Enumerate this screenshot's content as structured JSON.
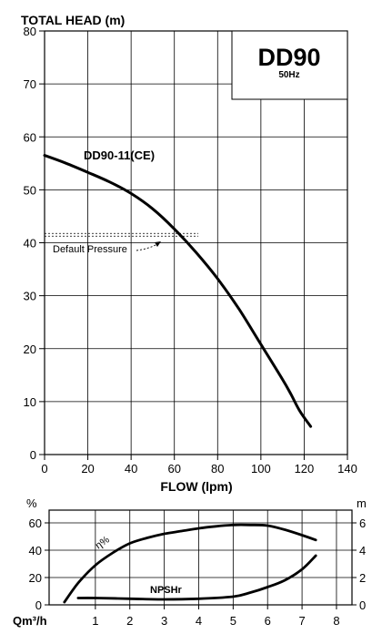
{
  "chart_data": [
    {
      "type": "line",
      "title": "",
      "ylabel": "TOTAL HEAD (m)",
      "xlabel": "FLOW (lpm)",
      "xlim": [
        0,
        140
      ],
      "ylim": [
        0,
        80
      ],
      "x_ticks": [
        "0",
        "20",
        "40",
        "60",
        "80",
        "100",
        "120",
        "140"
      ],
      "y_ticks": [
        "0",
        "10",
        "20",
        "30",
        "40",
        "50",
        "60",
        "70",
        "80"
      ],
      "grid": true,
      "model_box": {
        "model": "DD90",
        "frequency": "50Hz"
      },
      "series": [
        {
          "name": "DD90-11(CE)",
          "x": [
            0,
            10,
            20,
            30,
            40,
            50,
            60,
            70,
            80,
            90,
            100,
            110,
            114,
            118,
            123
          ],
          "y": [
            56.5,
            55,
            53.3,
            51.5,
            49.3,
            46.4,
            42.6,
            38.2,
            33.2,
            27.4,
            20.8,
            14.2,
            11.3,
            8.2,
            5.3
          ]
        }
      ],
      "reference_line": {
        "label": "Default Pressure",
        "y": 41.5
      }
    },
    {
      "type": "line",
      "left_unit": "%",
      "right_unit": "m",
      "bottom_unit": "Qm³/h",
      "xlim": [
        0,
        8
      ],
      "ylim_left": [
        0,
        60
      ],
      "ylim_right": [
        0,
        6
      ],
      "x_ticks": [
        "1",
        "2",
        "3",
        "4",
        "5",
        "6",
        "7",
        "8"
      ],
      "y_ticks_left": [
        "0",
        "20",
        "40",
        "60"
      ],
      "y_ticks_right": [
        "0",
        "2",
        "4",
        "6"
      ],
      "grid": true,
      "series": [
        {
          "name": "η%",
          "axis": "left",
          "x": [
            0.1,
            0.5,
            1,
            1.5,
            2,
            2.5,
            3,
            3.5,
            4,
            4.5,
            5,
            5.5,
            6,
            6.5,
            7,
            7.4
          ],
          "y": [
            2,
            16,
            29,
            38,
            45,
            49,
            52,
            54,
            56,
            57.5,
            58.5,
            58.5,
            58,
            55,
            51,
            47.5
          ]
        },
        {
          "name": "NPSHr",
          "axis": "right",
          "x": [
            0.5,
            1,
            2,
            3,
            4,
            5,
            5.5,
            6,
            6.5,
            7,
            7.4
          ],
          "y": [
            0.5,
            0.5,
            0.45,
            0.4,
            0.45,
            0.6,
            0.9,
            1.3,
            1.8,
            2.6,
            3.6
          ]
        }
      ]
    }
  ]
}
